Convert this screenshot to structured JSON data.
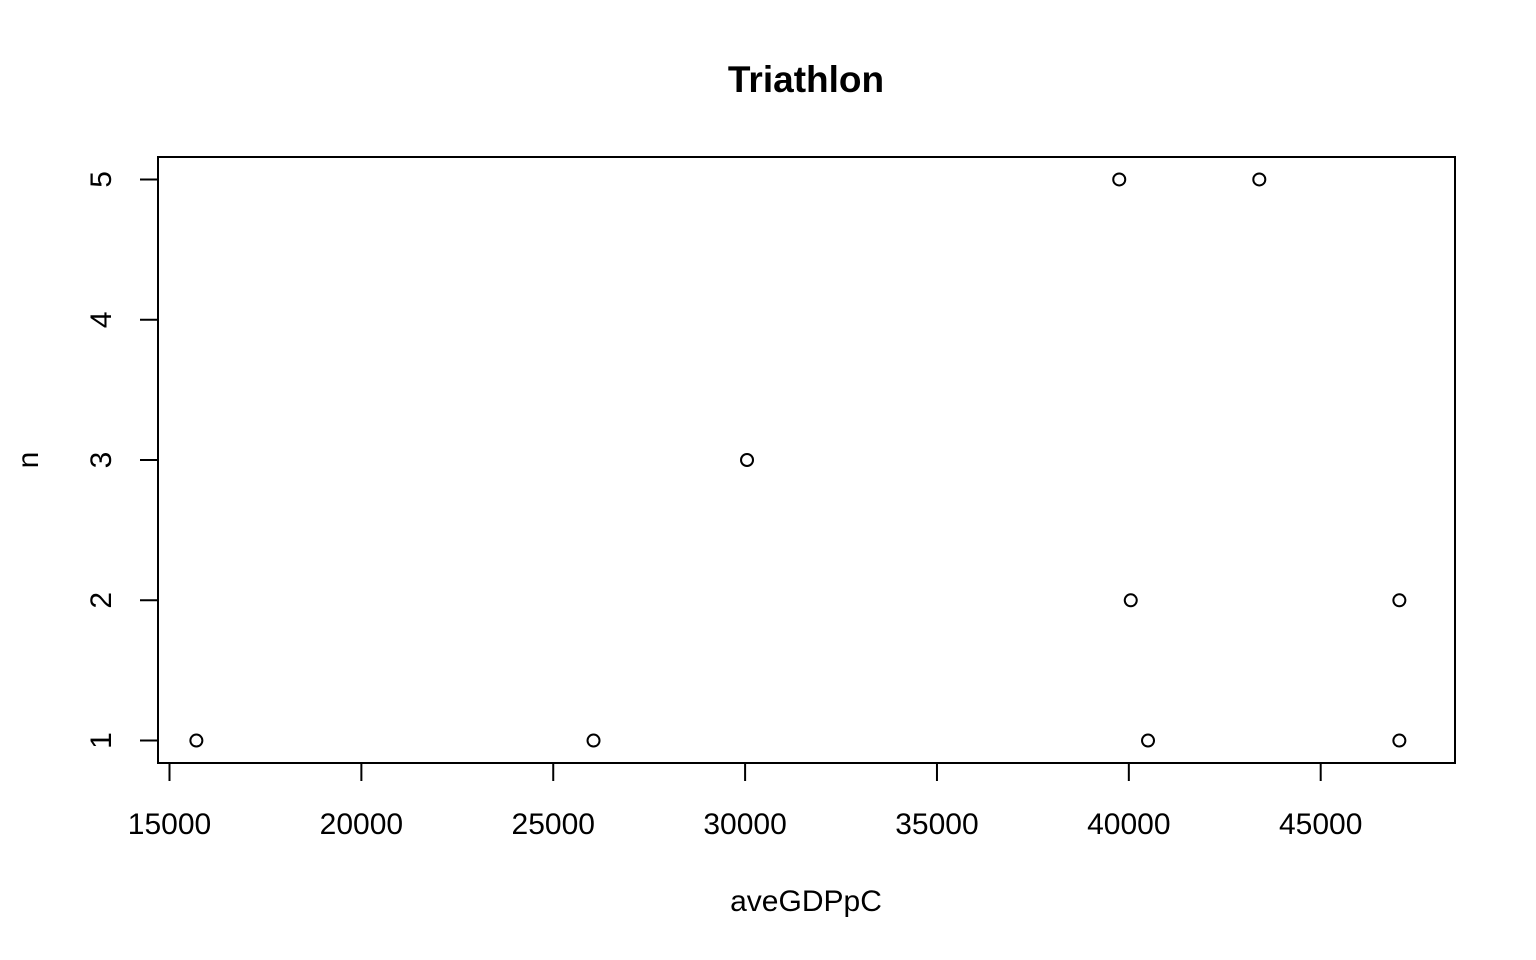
{
  "chart_data": {
    "type": "scatter",
    "title": "Triathlon",
    "xlabel": "aveGDPpC",
    "ylabel": "n",
    "xlim": [
      14700,
      48500
    ],
    "ylim": [
      0.84,
      5.16
    ],
    "xticks": [
      15000,
      20000,
      25000,
      30000,
      35000,
      40000,
      45000
    ],
    "yticks": [
      1,
      2,
      3,
      4,
      5
    ],
    "grid": false,
    "marker": "open-circle",
    "points": [
      {
        "x": 15700,
        "y": 1
      },
      {
        "x": 26050,
        "y": 1
      },
      {
        "x": 30050,
        "y": 3
      },
      {
        "x": 39750,
        "y": 5
      },
      {
        "x": 40050,
        "y": 2
      },
      {
        "x": 40500,
        "y": 1
      },
      {
        "x": 43400,
        "y": 5
      },
      {
        "x": 47050,
        "y": 2
      },
      {
        "x": 47050,
        "y": 1
      }
    ]
  }
}
